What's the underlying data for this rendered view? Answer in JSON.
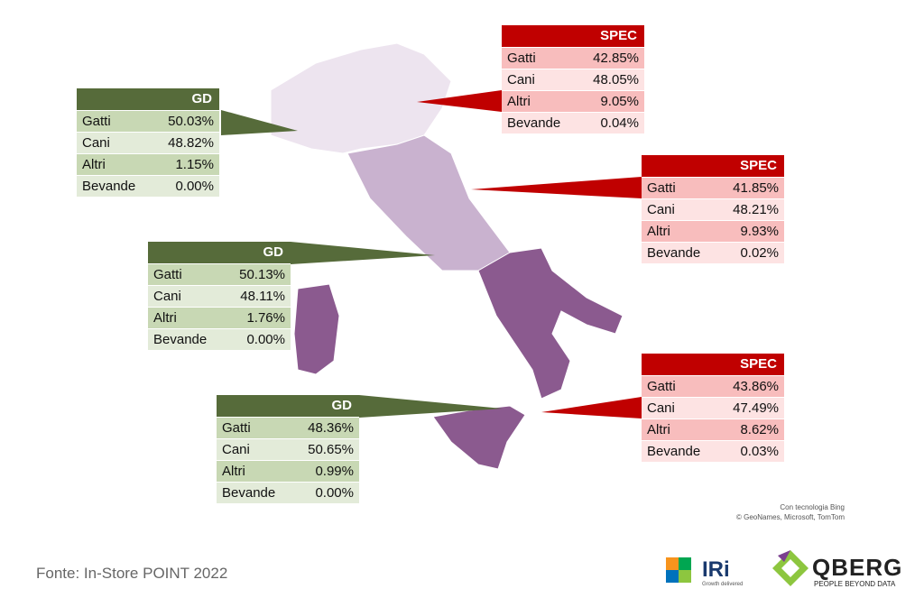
{
  "panels": [
    {
      "header": "GD",
      "rows": [
        [
          "Gatti",
          "50.03%"
        ],
        [
          "Cani",
          "48.82%"
        ],
        [
          "Altri",
          "1.15%"
        ],
        [
          "Bevande",
          "0.00%"
        ]
      ]
    },
    {
      "header": "SPEC",
      "rows": [
        [
          "Gatti",
          "42.85%"
        ],
        [
          "Cani",
          "48.05%"
        ],
        [
          "Altri",
          "9.05%"
        ],
        [
          "Bevande",
          "0.04%"
        ]
      ]
    },
    {
      "header": "SPEC",
      "rows": [
        [
          "Gatti",
          "41.85%"
        ],
        [
          "Cani",
          "48.21%"
        ],
        [
          "Altri",
          "9.93%"
        ],
        [
          "Bevande",
          "0.02%"
        ]
      ]
    },
    {
      "header": "GD",
      "rows": [
        [
          "Gatti",
          "50.13%"
        ],
        [
          "Cani",
          "48.11%"
        ],
        [
          "Altri",
          "1.76%"
        ],
        [
          "Bevande",
          "0.00%"
        ]
      ]
    },
    {
      "header": "GD",
      "rows": [
        [
          "Gatti",
          "48.36%"
        ],
        [
          "Cani",
          "50.65%"
        ],
        [
          "Altri",
          "0.99%"
        ],
        [
          "Bevande",
          "0.00%"
        ]
      ]
    },
    {
      "header": "SPEC",
      "rows": [
        [
          "Gatti",
          "43.86%"
        ],
        [
          "Cani",
          "47.49%"
        ],
        [
          "Altri",
          "8.62%"
        ],
        [
          "Bevande",
          "0.03%"
        ]
      ]
    }
  ],
  "attribution": {
    "line1": "Con tecnologia Bing",
    "line2": "© GeoNames, Microsoft, TomTom"
  },
  "footer": {
    "source": "Fonte: In-Store POINT 2022"
  },
  "logos": {
    "iri": "IRi",
    "iri_tagline": "Growth delivered",
    "qberg": "QBERG",
    "qberg_tagline": "PEOPLE BEYOND DATA"
  }
}
